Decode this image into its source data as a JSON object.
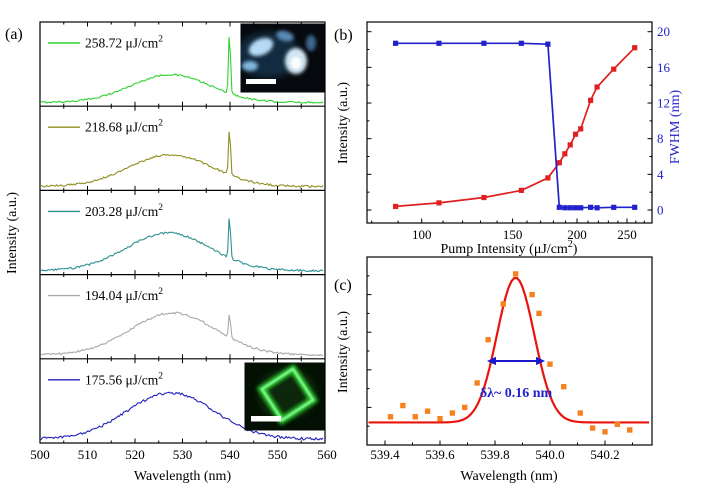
{
  "chart_data": [
    {
      "panel": "(a)",
      "type": "line",
      "xlabel": "Wavelength (nm)",
      "ylabel": "Intensity (a.u.)",
      "xlim": [
        500,
        560
      ],
      "x_ticks": [
        500,
        510,
        520,
        530,
        540,
        550,
        560
      ],
      "x_tick_labels": [
        "500",
        "510",
        "520",
        "530",
        "540",
        "550",
        "560"
      ],
      "x_minor_step_nm": 5,
      "series": [
        {
          "label_main": "258.72 μJ/cm",
          "label_sup": "2",
          "pump_uJ_per_cm2": 258.72,
          "color": "#2fd32f",
          "broad_center_nm": 527.5,
          "broad_sigma_nm": 8.3,
          "broad_height_rel": 0.33,
          "lasing_peak_nm": 539.9,
          "lasing_height_rel": 0.9,
          "noise_rel": 0.01,
          "inset": "blue-lasing-emission-micrograph-with-scalebar"
        },
        {
          "label_main": "218.68 μJ/cm",
          "label_sup": "2",
          "pump_uJ_per_cm2": 218.68,
          "color": "#8f8f22",
          "broad_center_nm": 527.5,
          "broad_sigma_nm": 8.8,
          "broad_height_rel": 0.38,
          "lasing_peak_nm": 539.9,
          "lasing_height_rel": 0.76,
          "noise_rel": 0.012
        },
        {
          "label_main": "203.28 μJ/cm",
          "label_sup": "2",
          "pump_uJ_per_cm2": 203.28,
          "color": "#2e9090",
          "broad_center_nm": 527.0,
          "broad_sigma_nm": 8.8,
          "broad_height_rel": 0.45,
          "lasing_peak_nm": 539.9,
          "lasing_height_rel": 0.72,
          "noise_rel": 0.012
        },
        {
          "label_main": "194.04 μJ/cm",
          "label_sup": "2",
          "pump_uJ_per_cm2": 194.04,
          "color": "#a9a9a9",
          "broad_center_nm": 528.0,
          "broad_sigma_nm": 9.0,
          "broad_height_rel": 0.5,
          "lasing_peak_nm": 539.9,
          "lasing_height_rel": 0.56,
          "noise_rel": 0.012
        },
        {
          "label_main": "175.56 μJ/cm",
          "label_sup": "2",
          "pump_uJ_per_cm2": 175.56,
          "color": "#2222bb",
          "broad_center_nm": 527.5,
          "broad_sigma_nm": 9.2,
          "broad_height_rel": 0.55,
          "lasing_peak_nm": null,
          "lasing_height_rel": 0,
          "noise_rel": 0.016,
          "inset": "green-square-microplate-micrograph-with-scalebar"
        }
      ]
    },
    {
      "panel": "(b)",
      "type": "line-scatter",
      "xlabel_main": "Pump Intensity (μJ/cm",
      "xlabel_sup": "2",
      "xlabel_post": ")",
      "ylabel_left": "Intensity (a.u.)",
      "ylabel_right": "FWHM (nm)",
      "x_scale": "log",
      "xlim": [
        78,
        282
      ],
      "x_ticks": [
        100,
        150,
        200,
        250
      ],
      "x_tick_labels": [
        "100",
        "150",
        "200",
        "250"
      ],
      "x_minor_ticks": [
        80,
        90,
        110,
        120,
        130,
        140,
        160,
        170,
        180,
        190,
        210,
        220,
        230,
        240,
        260,
        270
      ],
      "right_ylim": [
        0,
        20
      ],
      "right_y_ticks": [
        0,
        4,
        8,
        12,
        16,
        20
      ],
      "right_y_tick_labels": [
        "0",
        "4",
        "8",
        "12",
        "16",
        "20"
      ],
      "pump_uJ_per_cm2": [
        89,
        108,
        132,
        156,
        175.6,
        184.8,
        189.4,
        194.0,
        198.7,
        203.3,
        212.5,
        218.7,
        235.6,
        258.7
      ],
      "series": [
        {
          "name": "Intensity",
          "axis": "left",
          "color": "#e02020",
          "marker": "square",
          "values_rel_0_20": [
            0.4,
            0.8,
            1.4,
            2.2,
            3.6,
            5.3,
            6.3,
            7.3,
            8.5,
            9.1,
            12.3,
            13.8,
            15.8,
            18.2
          ]
        },
        {
          "name": "FWHM",
          "axis": "right",
          "color": "#2222cc",
          "marker": "square",
          "values_nm": [
            18.7,
            18.7,
            18.7,
            18.7,
            18.6,
            0.3,
            0.25,
            0.25,
            0.25,
            0.25,
            0.3,
            0.25,
            0.3,
            0.3
          ]
        }
      ]
    },
    {
      "panel": "(c)",
      "type": "scatter-fit",
      "xlabel": "Wavelength (nm)",
      "ylabel": "Intensity (a.u.)",
      "xlim": [
        539.33,
        540.37
      ],
      "x_ticks": [
        539.4,
        539.6,
        539.8,
        540.0,
        540.2
      ],
      "x_tick_labels": [
        "539.4",
        "539.6",
        "539.8",
        "540.0",
        "540.2"
      ],
      "scatter_color": "#f58220",
      "points": [
        [
          539.42,
          0.15
        ],
        [
          539.465,
          0.21
        ],
        [
          539.51,
          0.15
        ],
        [
          539.555,
          0.18
        ],
        [
          539.6,
          0.14
        ],
        [
          539.645,
          0.17
        ],
        [
          539.69,
          0.2
        ],
        [
          539.735,
          0.33
        ],
        [
          539.775,
          0.56
        ],
        [
          539.83,
          0.75
        ],
        [
          539.875,
          0.91
        ],
        [
          539.935,
          0.8
        ],
        [
          539.96,
          0.7
        ],
        [
          540.0,
          0.43
        ],
        [
          540.05,
          0.31
        ],
        [
          540.11,
          0.17
        ],
        [
          540.155,
          0.09
        ],
        [
          540.2,
          0.07
        ],
        [
          540.245,
          0.11
        ],
        [
          540.29,
          0.08
        ]
      ],
      "fit": {
        "type": "gaussian",
        "center_nm": 539.875,
        "fwhm_nm": 0.16,
        "baseline_rel": 0.12,
        "height_rel": 0.89,
        "color": "#e8150d"
      },
      "annotation": {
        "text": "δλ~ 0.16 nm",
        "color": "#1a1acc",
        "arrow_from_nm": 539.771,
        "arrow_to_nm": 539.982,
        "arrow_y_rel": 0.447
      }
    }
  ]
}
